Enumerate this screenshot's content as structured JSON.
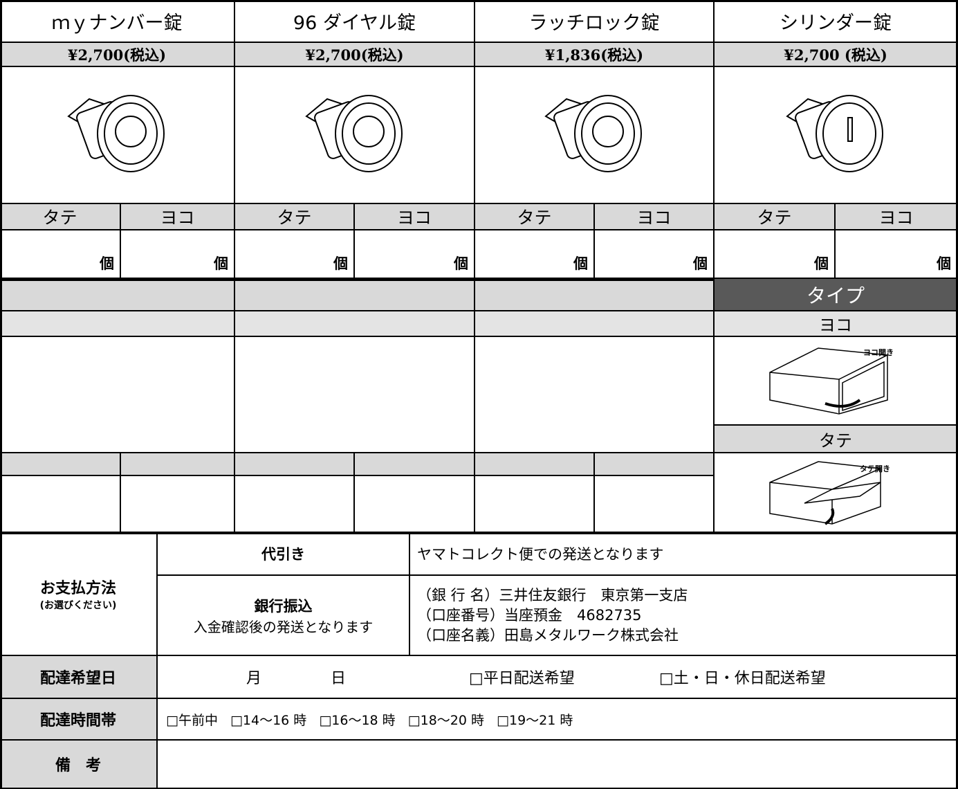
{
  "products": [
    {
      "name": "ｍｙナンバー錠",
      "price": "¥2,700(税込)",
      "columns": [
        {
          "label": "タテ",
          "unit": "個"
        },
        {
          "label": "ヨコ",
          "unit": "個"
        }
      ]
    },
    {
      "name": "96 ダイヤル錠",
      "price": "¥2,700(税込)",
      "columns": [
        {
          "label": "タテ",
          "unit": "個"
        },
        {
          "label": "ヨコ",
          "unit": "個"
        }
      ]
    },
    {
      "name": "ラッチロック錠",
      "price": "¥1,836(税込)",
      "columns": [
        {
          "label": "タテ",
          "unit": "個"
        },
        {
          "label": "ヨコ",
          "unit": "個"
        }
      ]
    },
    {
      "name": "シリンダー錠",
      "price": "¥2,700 (税込)",
      "columns": [
        {
          "label": "タテ",
          "unit": "個"
        },
        {
          "label": "ヨコ",
          "unit": "個"
        }
      ]
    }
  ],
  "type_panel": {
    "title": "タイプ",
    "options": [
      {
        "label": "ヨコ",
        "caption": "ヨコ開き"
      },
      {
        "label": "タテ",
        "caption": "タテ開き"
      }
    ]
  },
  "payment": {
    "label": "お支払方法",
    "note": "(お選びください)",
    "methods": [
      {
        "name": "代引き",
        "description": [
          "ヤマトコレクト便での発送となります"
        ]
      },
      {
        "name": "銀行振込",
        "note": "入金確認後の発送となります",
        "description": [
          "（銀 行 名）三井住友銀行　東京第一支店",
          "（口座番号）当座預金　4682735",
          "（口座名義）田島メタルワーク株式会社"
        ]
      }
    ]
  },
  "delivery_date": {
    "label": "配達希望日",
    "fields": [
      "月",
      "日"
    ],
    "options": [
      "□平日配送希望",
      "□土・日・休日配送希望"
    ]
  },
  "delivery_time": {
    "label": "配達時間帯",
    "options": [
      "□午前中",
      "□14～16 時",
      "□16～18 時",
      "□18～20 時",
      "□19～21 時"
    ]
  },
  "remarks": {
    "label": "備　考"
  }
}
